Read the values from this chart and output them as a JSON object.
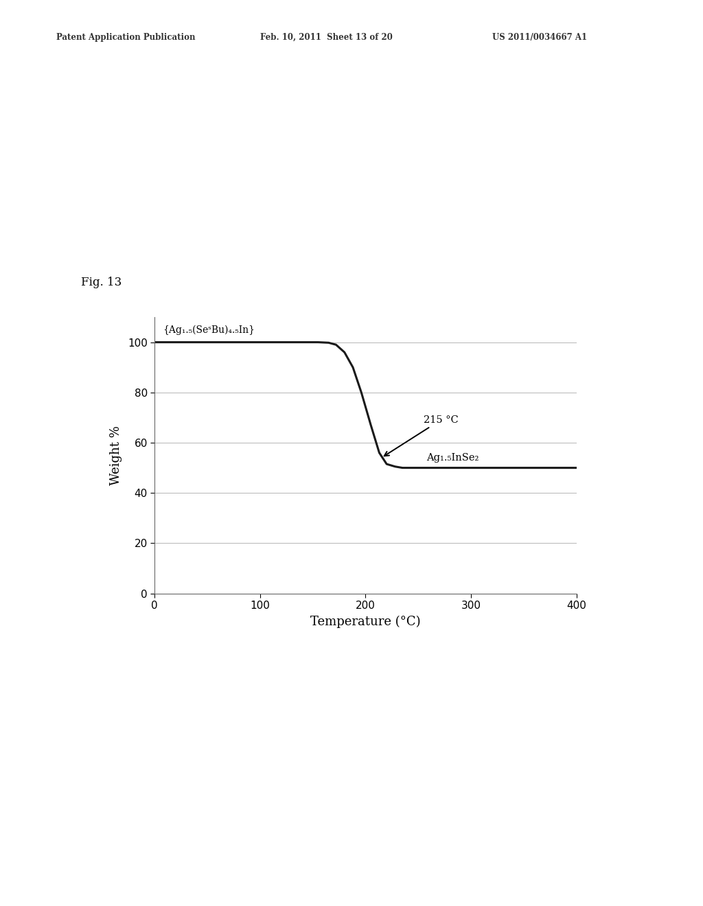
{
  "xlabel": "Temperature (°C)",
  "ylabel": "Weight %",
  "xlim": [
    0,
    400
  ],
  "ylim": [
    0,
    110
  ],
  "yticks": [
    0,
    20,
    40,
    60,
    80,
    100
  ],
  "xticks": [
    0,
    100,
    200,
    300,
    400
  ],
  "line_color": "#1a1a1a",
  "line_width": 2.2,
  "background_color": "#ffffff",
  "annotation_215": "215 °C",
  "annotation_formula_top": "{Ag₁.₅(SeˢBu)₄.₅In}",
  "annotation_formula_bottom": "Ag₁.₅InSe₂",
  "header_left": "Patent Application Publication",
  "header_mid": "Feb. 10, 2011  Sheet 13 of 20",
  "header_right": "US 2011/0034667 A1",
  "fig_label": "Fig. 13",
  "curve_x": [
    0,
    155,
    165,
    172,
    180,
    188,
    196,
    205,
    213,
    220,
    228,
    235,
    400
  ],
  "curve_y": [
    100,
    100,
    99.8,
    99,
    96,
    90,
    80,
    67,
    56,
    51.5,
    50.5,
    50,
    50
  ]
}
